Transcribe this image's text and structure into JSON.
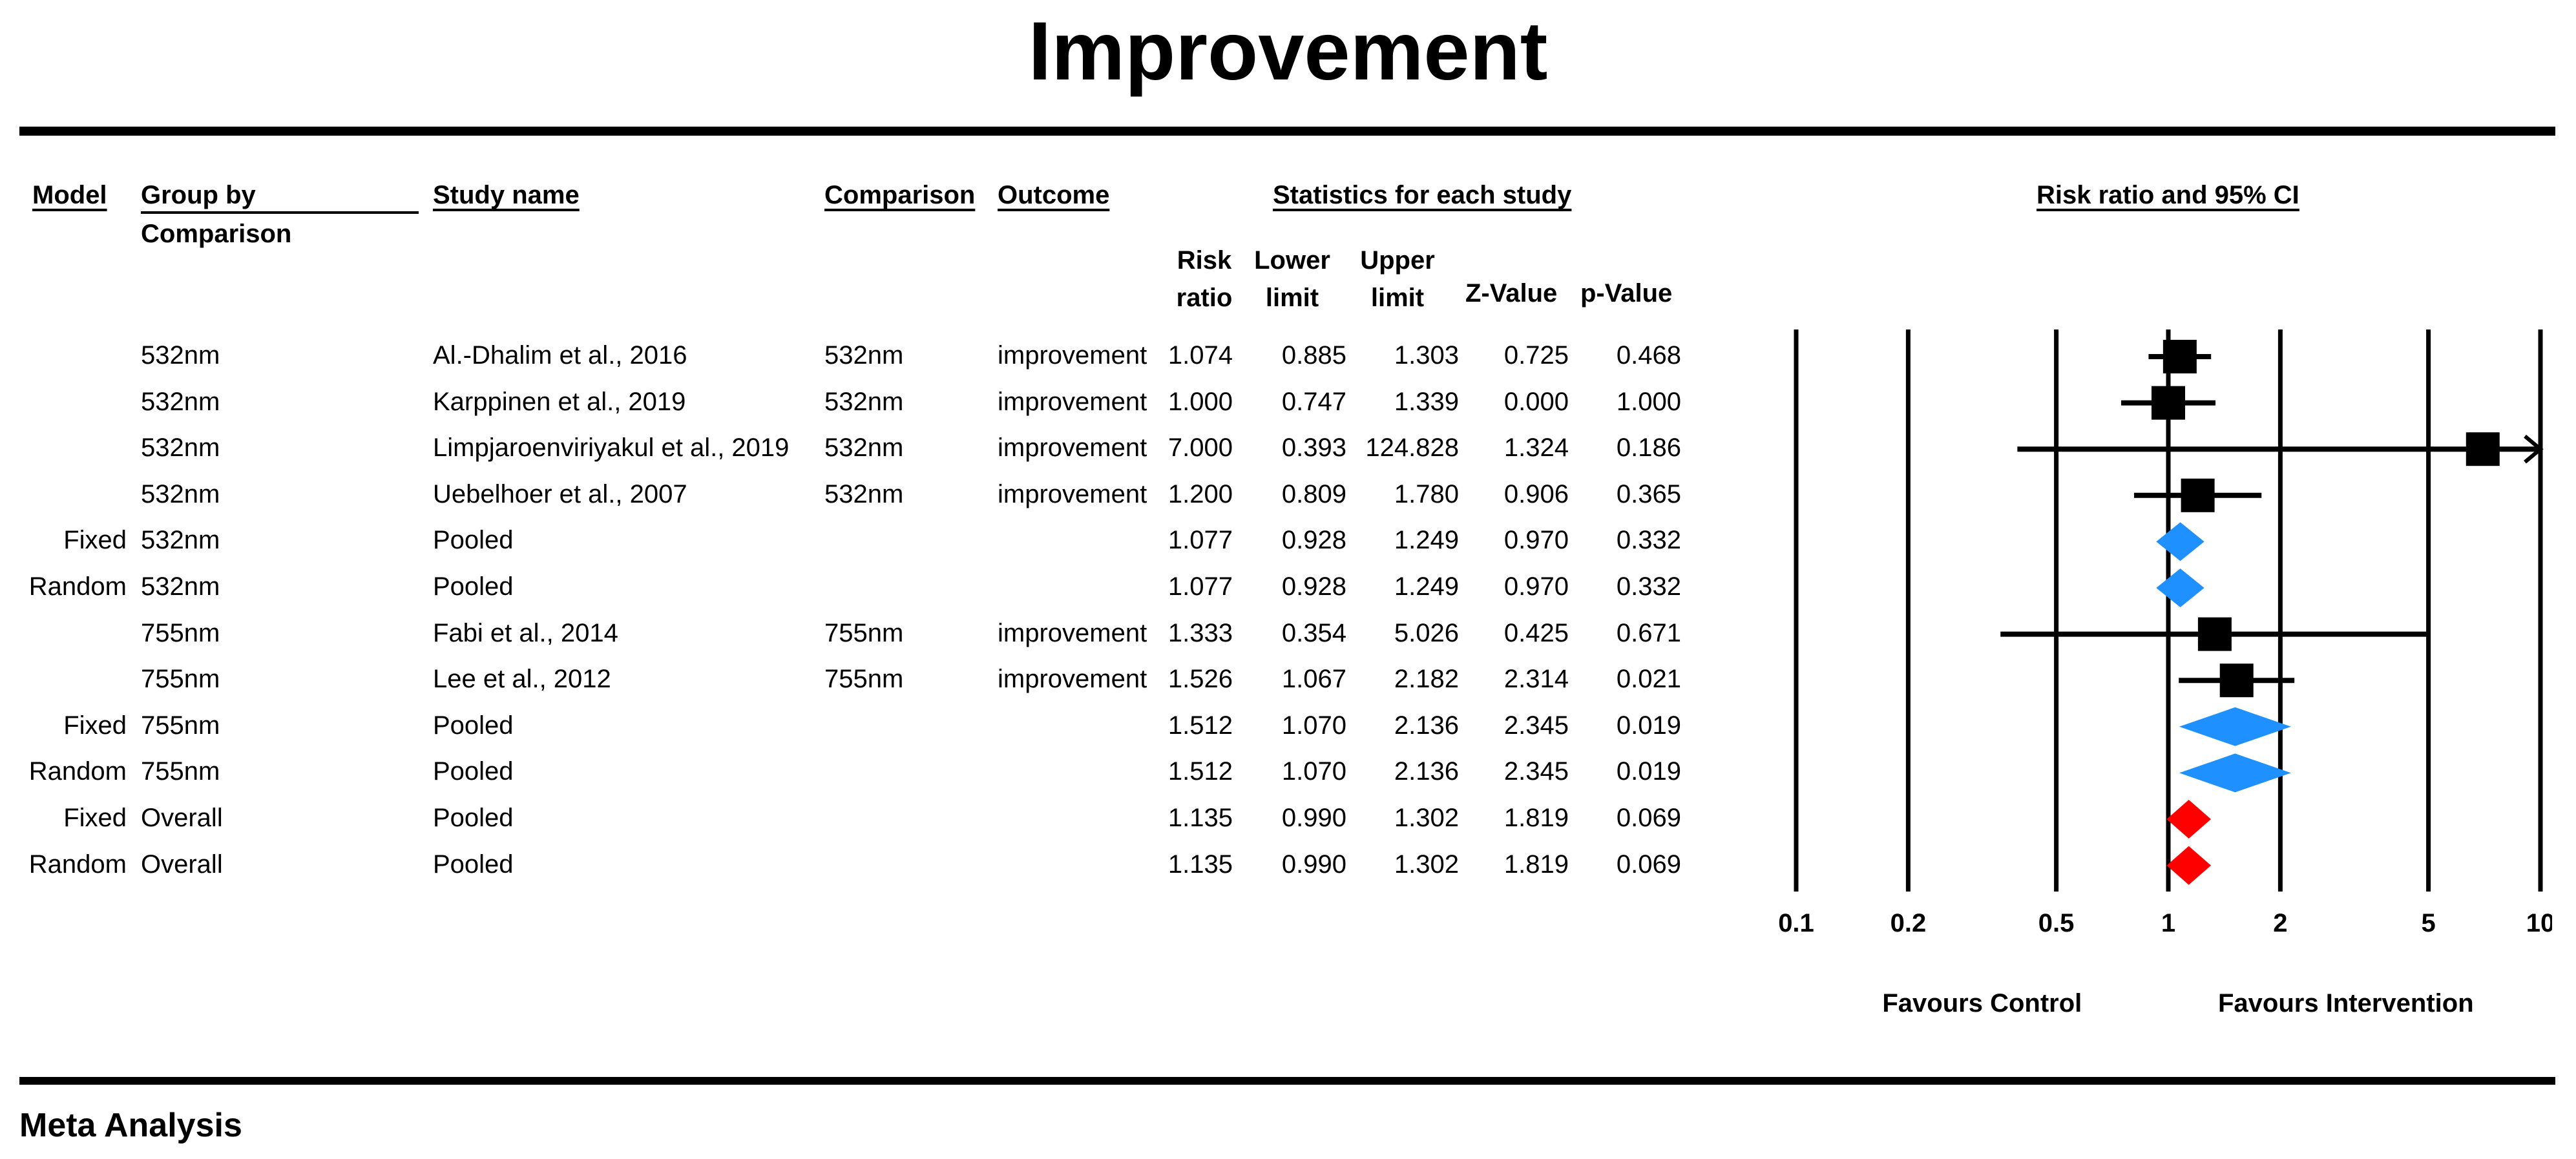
{
  "title": "Improvement",
  "footer": "Meta Analysis",
  "headers": {
    "model": "Model",
    "group_line1": "Group by",
    "group_line2": "Comparison",
    "study": "Study name",
    "comparison": "Comparison",
    "outcome": "Outcome",
    "stats_group": "Statistics for each study",
    "rr_line1": "Risk",
    "rr_line2": "ratio",
    "lower_line1": "Lower",
    "lower_line2": "limit",
    "upper_line1": "Upper",
    "upper_line2": "limit",
    "z": "Z-Value",
    "p": "p-Value",
    "plot": "Risk ratio and 95% CI"
  },
  "rows": [
    {
      "model": "",
      "group": "532nm",
      "study": "Al.-Dhalim et al., 2016",
      "comparison": "532nm",
      "outcome": "improvement",
      "rr": "1.074",
      "lower": "0.885",
      "upper": "1.303",
      "z": "0.725",
      "p": "0.468"
    },
    {
      "model": "",
      "group": "532nm",
      "study": "Karppinen et al., 2019",
      "comparison": "532nm",
      "outcome": "improvement",
      "rr": "1.000",
      "lower": "0.747",
      "upper": "1.339",
      "z": "0.000",
      "p": "1.000"
    },
    {
      "model": "",
      "group": "532nm",
      "study": "Limpjaroenviriyakul et al., 2019",
      "comparison": "532nm",
      "outcome": "improvement",
      "rr": "7.000",
      "lower": "0.393",
      "upper": "124.828",
      "z": "1.324",
      "p": "0.186"
    },
    {
      "model": "",
      "group": "532nm",
      "study": "Uebelhoer et al., 2007",
      "comparison": "532nm",
      "outcome": "improvement",
      "rr": "1.200",
      "lower": "0.809",
      "upper": "1.780",
      "z": "0.906",
      "p": "0.365"
    },
    {
      "model": "Fixed",
      "group": "532nm",
      "study": "Pooled",
      "comparison": "",
      "outcome": "",
      "rr": "1.077",
      "lower": "0.928",
      "upper": "1.249",
      "z": "0.970",
      "p": "0.332"
    },
    {
      "model": "Random",
      "group": "532nm",
      "study": "Pooled",
      "comparison": "",
      "outcome": "",
      "rr": "1.077",
      "lower": "0.928",
      "upper": "1.249",
      "z": "0.970",
      "p": "0.332"
    },
    {
      "model": "",
      "group": "755nm",
      "study": "Fabi et al., 2014",
      "comparison": "755nm",
      "outcome": "improvement",
      "rr": "1.333",
      "lower": "0.354",
      "upper": "5.026",
      "z": "0.425",
      "p": "0.671"
    },
    {
      "model": "",
      "group": "755nm",
      "study": "Lee et al., 2012",
      "comparison": "755nm",
      "outcome": "improvement",
      "rr": "1.526",
      "lower": "1.067",
      "upper": "2.182",
      "z": "2.314",
      "p": "0.021"
    },
    {
      "model": "Fixed",
      "group": "755nm",
      "study": "Pooled",
      "comparison": "",
      "outcome": "",
      "rr": "1.512",
      "lower": "1.070",
      "upper": "2.136",
      "z": "2.345",
      "p": "0.019"
    },
    {
      "model": "Random",
      "group": "755nm",
      "study": "Pooled",
      "comparison": "",
      "outcome": "",
      "rr": "1.512",
      "lower": "1.070",
      "upper": "2.136",
      "z": "2.345",
      "p": "0.019"
    },
    {
      "model": "Fixed",
      "group": "Overall",
      "study": "Pooled",
      "comparison": "",
      "outcome": "",
      "rr": "1.135",
      "lower": "0.990",
      "upper": "1.302",
      "z": "1.819",
      "p": "0.069"
    },
    {
      "model": "Random",
      "group": "Overall",
      "study": "Pooled",
      "comparison": "",
      "outcome": "",
      "rr": "1.135",
      "lower": "0.990",
      "upper": "1.302",
      "z": "1.819",
      "p": "0.069"
    }
  ],
  "chart_data": {
    "type": "forest",
    "scale": "log",
    "xlim": [
      0.1,
      10
    ],
    "ticks": [
      "0.1",
      "0.2",
      "0.5",
      "1",
      "2",
      "5",
      "10"
    ],
    "xlabel_left": "Favours Control",
    "xlabel_right": "Favours Intervention",
    "points": [
      {
        "rr": 1.074,
        "lower": 0.885,
        "upper": 1.303,
        "marker": "square"
      },
      {
        "rr": 1.0,
        "lower": 0.747,
        "upper": 1.339,
        "marker": "square"
      },
      {
        "rr": 7.0,
        "lower": 0.393,
        "upper": 124.828,
        "marker": "square",
        "clipped_right": true
      },
      {
        "rr": 1.2,
        "lower": 0.809,
        "upper": 1.78,
        "marker": "square"
      },
      {
        "rr": 1.077,
        "lower": 0.928,
        "upper": 1.249,
        "marker": "diamond"
      },
      {
        "rr": 1.077,
        "lower": 0.928,
        "upper": 1.249,
        "marker": "diamond"
      },
      {
        "rr": 1.333,
        "lower": 0.354,
        "upper": 5.026,
        "marker": "square"
      },
      {
        "rr": 1.526,
        "lower": 1.067,
        "upper": 2.182,
        "marker": "square"
      },
      {
        "rr": 1.512,
        "lower": 1.07,
        "upper": 2.136,
        "marker": "diamond"
      },
      {
        "rr": 1.512,
        "lower": 1.07,
        "upper": 2.136,
        "marker": "diamond"
      },
      {
        "rr": 1.135,
        "lower": 0.99,
        "upper": 1.302,
        "marker": "diamond-overall"
      },
      {
        "rr": 1.135,
        "lower": 0.99,
        "upper": 1.302,
        "marker": "diamond-overall"
      }
    ],
    "colors": {
      "study": "#000000",
      "subgroup": "#1e90ff",
      "overall": "#ff0000"
    }
  }
}
